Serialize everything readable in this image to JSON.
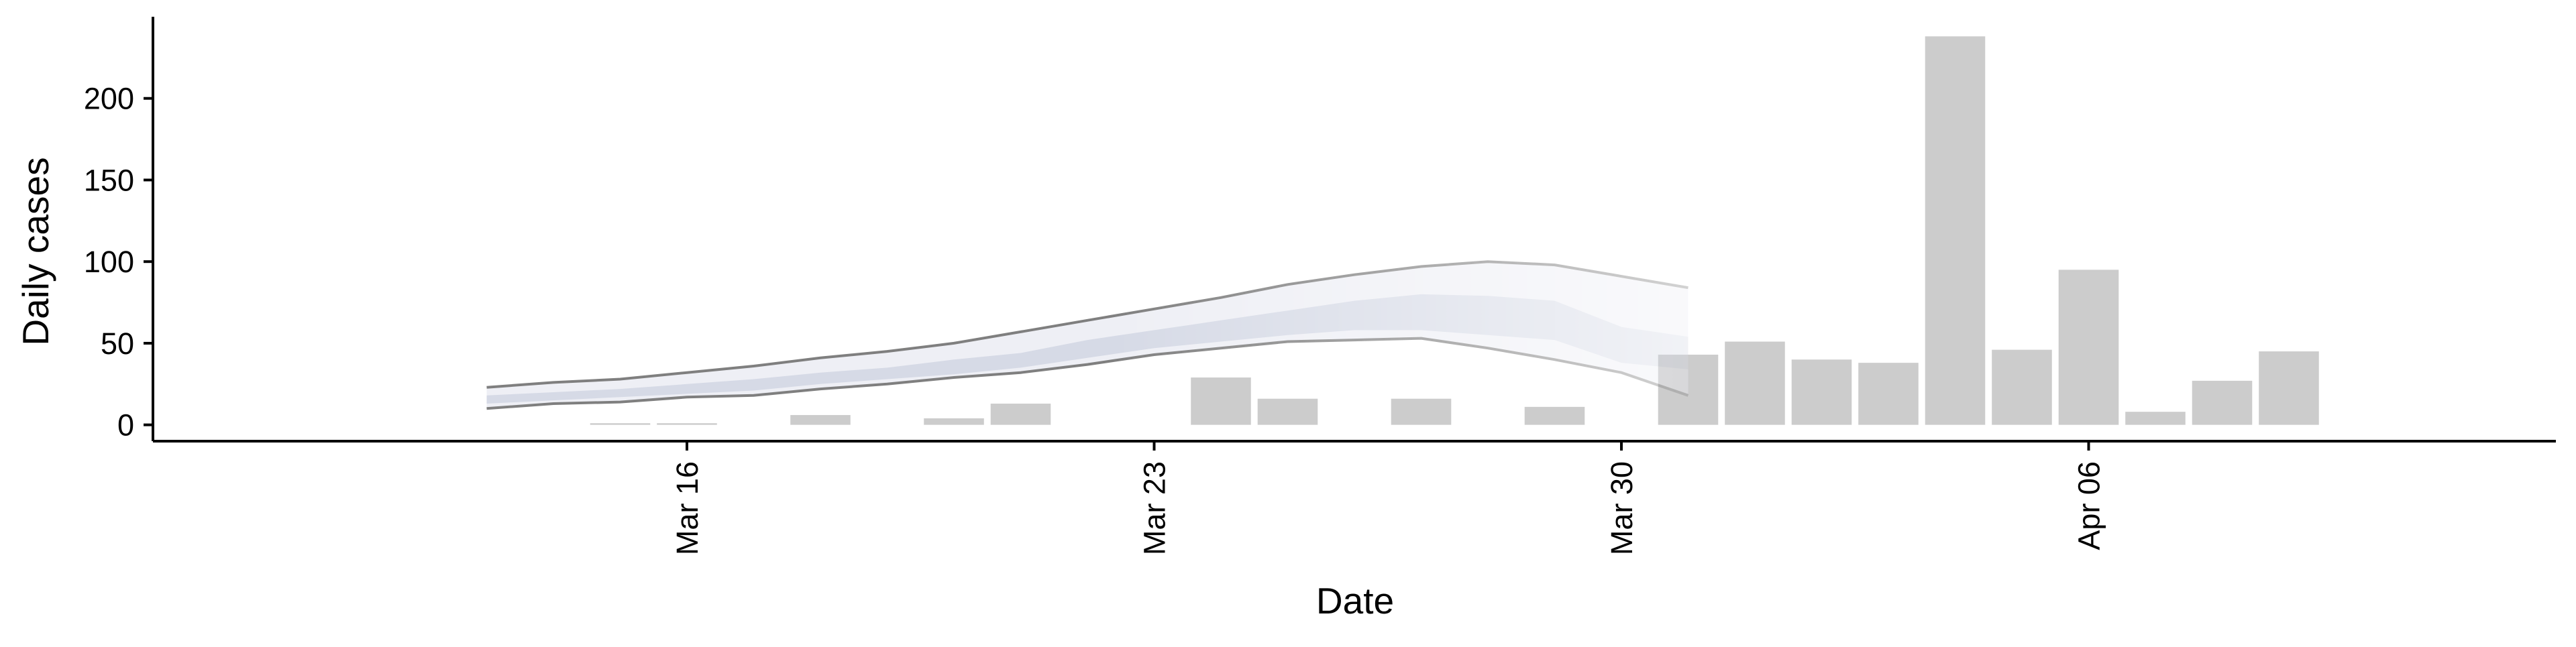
{
  "chart_data": {
    "type": "bar",
    "xlabel": "Date",
    "ylabel": "Daily cases",
    "y_ticks": [
      0,
      50,
      100,
      150,
      200
    ],
    "ylim": [
      -10,
      250
    ],
    "x_ticks": [
      {
        "date": "2020-03-16",
        "label": "Mar 16"
      },
      {
        "date": "2020-03-23",
        "label": "Mar 23"
      },
      {
        "date": "2020-03-30",
        "label": "Mar 30"
      },
      {
        "date": "2020-04-06",
        "label": "Apr 06"
      }
    ],
    "xlim": [
      "2020-03-08",
      "2020-04-13"
    ],
    "grid": false,
    "legend": "none",
    "bars": [
      {
        "date": "2020-03-15",
        "value": 1
      },
      {
        "date": "2020-03-16",
        "value": 1
      },
      {
        "date": "2020-03-18",
        "value": 6
      },
      {
        "date": "2020-03-20",
        "value": 4
      },
      {
        "date": "2020-03-21",
        "value": 13
      },
      {
        "date": "2020-03-24",
        "value": 29
      },
      {
        "date": "2020-03-25",
        "value": 16
      },
      {
        "date": "2020-03-27",
        "value": 16
      },
      {
        "date": "2020-03-29",
        "value": 11
      },
      {
        "date": "2020-03-31",
        "value": 43
      },
      {
        "date": "2020-04-01",
        "value": 51
      },
      {
        "date": "2020-04-02",
        "value": 40
      },
      {
        "date": "2020-04-03",
        "value": 38
      },
      {
        "date": "2020-04-04",
        "value": 238
      },
      {
        "date": "2020-04-05",
        "value": 46
      },
      {
        "date": "2020-04-06",
        "value": 95
      },
      {
        "date": "2020-04-07",
        "value": 8
      },
      {
        "date": "2020-04-08",
        "value": 27
      },
      {
        "date": "2020-04-09",
        "value": 45
      }
    ],
    "estimate_band": {
      "dates": [
        "2020-03-13",
        "2020-03-14",
        "2020-03-15",
        "2020-03-16",
        "2020-03-17",
        "2020-03-18",
        "2020-03-19",
        "2020-03-20",
        "2020-03-21",
        "2020-03-22",
        "2020-03-23",
        "2020-03-24",
        "2020-03-25",
        "2020-03-26",
        "2020-03-27",
        "2020-03-28",
        "2020-03-29",
        "2020-03-30",
        "2020-03-31"
      ],
      "outer_upper": [
        23,
        26,
        28,
        32,
        36,
        41,
        45,
        50,
        57,
        64,
        71,
        78,
        86,
        92,
        97,
        100,
        98,
        91,
        84
      ],
      "outer_lower": [
        10,
        13,
        14,
        17,
        18,
        22,
        25,
        29,
        32,
        37,
        43,
        47,
        51,
        52,
        53,
        47,
        40,
        32,
        18
      ],
      "inner_upper": [
        18,
        20,
        22,
        25,
        28,
        32,
        35,
        40,
        44,
        52,
        58,
        64,
        70,
        76,
        80,
        79,
        76,
        60,
        54
      ],
      "inner_lower": [
        13,
        15,
        17,
        19,
        21,
        25,
        28,
        31,
        35,
        41,
        47,
        51,
        55,
        58,
        58,
        55,
        52,
        38,
        34
      ]
    },
    "colors": {
      "bar": "#cccccc",
      "outer_band_fill": "#eeeff5",
      "inner_band_fill": "#d6dae6",
      "outer_band_line": "#7f7f7f",
      "axis": "#000000"
    }
  }
}
